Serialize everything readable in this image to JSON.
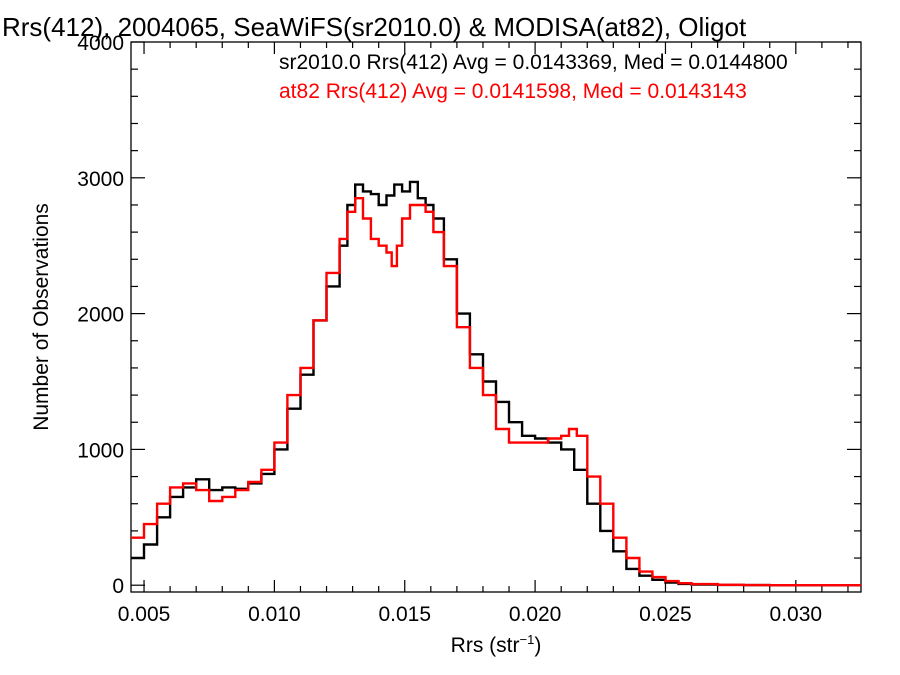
{
  "chart_data": {
    "type": "line",
    "title": "Rrs(412), 2004065, SeaWiFS(sr2010.0) & MODISA(at82), Oligot",
    "xlabel": "Rrs (str",
    "xlabel_sup": "−1",
    "xlabel_close": ")",
    "ylabel": "Number of Observations",
    "xlim": [
      0.0045,
      0.0325
    ],
    "ylim": [
      -50,
      4000
    ],
    "x_ticks": [
      0.005,
      0.01,
      0.015,
      0.02,
      0.025,
      0.03
    ],
    "x_tick_labels": [
      "0.005",
      "0.010",
      "0.015",
      "0.020",
      "0.025",
      "0.030"
    ],
    "y_ticks": [
      0,
      1000,
      2000,
      3000,
      4000
    ],
    "y_tick_labels": [
      "0",
      "1000",
      "2000",
      "3000",
      "4000"
    ],
    "grid": false,
    "legend_position": "top-right",
    "series": [
      {
        "name": "sr2010.0 Rrs(412) Avg = 0.0143369, Med = 0.0144800",
        "color": "#000000",
        "x": [
          0.0045,
          0.005,
          0.0055,
          0.006,
          0.0065,
          0.007,
          0.0075,
          0.008,
          0.0085,
          0.009,
          0.0095,
          0.01,
          0.0105,
          0.011,
          0.0115,
          0.012,
          0.0125,
          0.0128,
          0.0131,
          0.0134,
          0.0137,
          0.014,
          0.0143,
          0.0146,
          0.0149,
          0.0152,
          0.0155,
          0.0158,
          0.0161,
          0.0165,
          0.017,
          0.0175,
          0.018,
          0.0185,
          0.019,
          0.0195,
          0.02,
          0.0205,
          0.021,
          0.0215,
          0.022,
          0.0225,
          0.023,
          0.0235,
          0.024,
          0.0245,
          0.025,
          0.0255,
          0.026,
          0.027,
          0.028,
          0.029,
          0.03,
          0.031,
          0.032,
          0.0325
        ],
        "y": [
          200,
          300,
          500,
          650,
          720,
          780,
          700,
          720,
          710,
          750,
          820,
          1000,
          1300,
          1550,
          1950,
          2200,
          2500,
          2800,
          2950,
          2900,
          2880,
          2800,
          2870,
          2950,
          2900,
          2970,
          2850,
          2800,
          2700,
          2400,
          2000,
          1700,
          1500,
          1350,
          1200,
          1100,
          1080,
          1050,
          1000,
          850,
          600,
          400,
          250,
          120,
          70,
          40,
          20,
          10,
          5,
          2,
          1,
          0,
          0,
          0,
          0,
          0
        ]
      },
      {
        "name": "at82 Rrs(412) Avg = 0.0141598, Med = 0.0143143",
        "color": "#ff0000",
        "x": [
          0.0045,
          0.005,
          0.0055,
          0.006,
          0.0065,
          0.007,
          0.0075,
          0.008,
          0.0085,
          0.009,
          0.0095,
          0.01,
          0.0105,
          0.011,
          0.0115,
          0.012,
          0.0125,
          0.0128,
          0.0131,
          0.0134,
          0.0137,
          0.014,
          0.0143,
          0.0145,
          0.0147,
          0.0149,
          0.0152,
          0.0155,
          0.0158,
          0.0161,
          0.0165,
          0.017,
          0.0175,
          0.018,
          0.0185,
          0.019,
          0.0195,
          0.02,
          0.0205,
          0.021,
          0.0213,
          0.0216,
          0.022,
          0.0225,
          0.023,
          0.0235,
          0.024,
          0.0245,
          0.025,
          0.0255,
          0.026,
          0.027,
          0.028,
          0.029,
          0.03,
          0.031,
          0.032,
          0.0325
        ],
        "y": [
          350,
          450,
          600,
          720,
          750,
          700,
          620,
          650,
          700,
          760,
          850,
          1050,
          1400,
          1600,
          1950,
          2300,
          2550,
          2750,
          2850,
          2700,
          2550,
          2500,
          2450,
          2350,
          2500,
          2700,
          2800,
          2800,
          2750,
          2600,
          2350,
          1900,
          1600,
          1400,
          1150,
          1050,
          1050,
          1050,
          1080,
          1100,
          1150,
          1100,
          800,
          600,
          350,
          200,
          100,
          60,
          30,
          15,
          8,
          3,
          1,
          0,
          0,
          0,
          0,
          0
        ]
      }
    ]
  }
}
